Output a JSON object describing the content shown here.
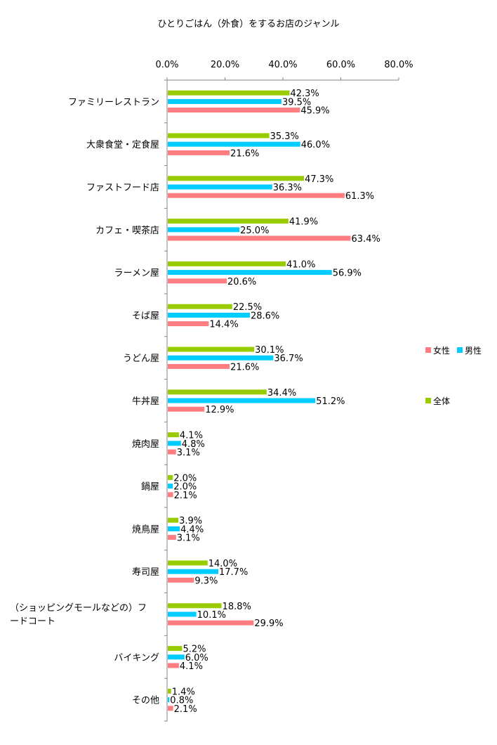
{
  "chart_data": {
    "type": "bar",
    "orientation": "horizontal",
    "title": "ひとりごはん（外食）をするお店のジャンル",
    "xlim": [
      0,
      80
    ],
    "x_ticks": [
      "0.0%",
      "20.0%",
      "40.0%",
      "60.0%",
      "80.0%"
    ],
    "tick_position": "top",
    "grid": false,
    "legend_position": "right",
    "categories": [
      "ファミリーレストラン",
      "大衆食堂・定食屋",
      "ファストフード店",
      "カフェ・喫茶店",
      "ラーメン屋",
      "そば屋",
      "うどん屋",
      "牛丼屋",
      "焼肉屋",
      "鍋屋",
      "焼鳥屋",
      "寿司屋",
      "（ショッピングモールなどの）フードコート",
      "バイキング",
      "その他"
    ],
    "category_lines": [
      [
        "ファミリーレストラン"
      ],
      [
        "大衆食堂・定食屋"
      ],
      [
        "ファストフード店"
      ],
      [
        "カフェ・喫茶店"
      ],
      [
        "ラーメン屋"
      ],
      [
        "そば屋"
      ],
      [
        "うどん屋"
      ],
      [
        "牛丼屋"
      ],
      [
        "焼肉屋"
      ],
      [
        "鍋屋"
      ],
      [
        "焼鳥屋"
      ],
      [
        "寿司屋"
      ],
      [
        "（ショッピングモールなどの）フ",
        "ードコート"
      ],
      [
        "バイキング"
      ],
      [
        "その他"
      ]
    ],
    "series": [
      {
        "name": "全体",
        "color": "#99cc00",
        "values": [
          42.3,
          35.3,
          47.3,
          41.9,
          41.0,
          22.5,
          30.1,
          34.4,
          4.1,
          2.0,
          3.9,
          14.0,
          18.8,
          5.2,
          1.4
        ]
      },
      {
        "name": "男性",
        "color": "#00ccff",
        "values": [
          39.5,
          46.0,
          36.3,
          25.0,
          56.9,
          28.6,
          36.7,
          51.2,
          4.8,
          2.0,
          4.4,
          17.7,
          10.1,
          6.0,
          0.8
        ]
      },
      {
        "name": "女性",
        "color": "#ff7c80",
        "values": [
          45.9,
          21.6,
          61.3,
          63.4,
          20.6,
          14.4,
          21.6,
          12.9,
          3.1,
          2.1,
          3.1,
          9.3,
          29.9,
          4.1,
          2.1
        ]
      }
    ],
    "value_labels": [
      [
        "42.3%",
        "35.3%",
        "47.3%",
        "41.9%",
        "41.0%",
        "22.5%",
        "30.1%",
        "34.4%",
        "4.1%",
        "2.0%",
        "3.9%",
        "14.0%",
        "18.8%",
        "5.2%",
        "1.4%"
      ],
      [
        "39.5%",
        "46.0%",
        "36.3%",
        "25.0%",
        "56.9%",
        "28.6%",
        "36.7%",
        "51.2%",
        "4.8%",
        "2.0%",
        "4.4%",
        "17.7%",
        "10.1%",
        "6.0%",
        "0.8%"
      ],
      [
        "45.9%",
        "21.6%",
        "61.3%",
        "63.4%",
        "20.6%",
        "14.4%",
        "21.6%",
        "12.9%",
        "3.1%",
        "2.1%",
        "3.1%",
        "9.3%",
        "29.9%",
        "4.1%",
        "2.1%"
      ]
    ],
    "legend": {
      "row1": [
        "女性",
        "男性"
      ],
      "row2": [
        "全体"
      ]
    }
  }
}
